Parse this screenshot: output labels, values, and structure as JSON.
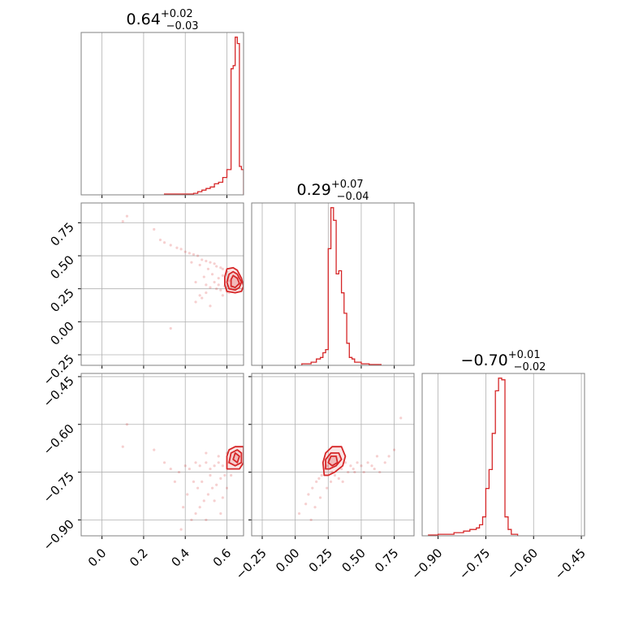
{
  "colors": {
    "line": "#d62728",
    "point": "#d62728",
    "grid": "#b0b0b0",
    "frame": "#808080"
  },
  "chart_data": {
    "type": "corner",
    "grid": true,
    "titles": [
      {
        "value": "0.64",
        "upper": "+0.02",
        "lower": "−0.03"
      },
      {
        "value": "0.29",
        "upper": "+0.07",
        "lower": "−0.04"
      },
      {
        "value": "−0.70",
        "upper": "+0.01",
        "lower": "−0.02"
      }
    ],
    "axes": [
      {
        "range": [
          -0.1,
          0.68
        ],
        "ticks": [
          0.0,
          0.2,
          0.4,
          0.6
        ],
        "tick_labels": [
          "0.0",
          "0.2",
          "0.4",
          "0.6"
        ]
      },
      {
        "range": [
          -0.33,
          0.9
        ],
        "ticks": [
          -0.25,
          0.0,
          0.25,
          0.5,
          0.75
        ],
        "tick_labels": [
          "−0.25",
          "0.00",
          "0.25",
          "0.50",
          "0.75"
        ]
      },
      {
        "range": [
          -0.95,
          -0.44
        ],
        "ticks": [
          -0.9,
          -0.75,
          -0.6,
          -0.45
        ],
        "tick_labels": [
          "−0.90",
          "−0.75",
          "−0.60",
          "−0.45"
        ]
      }
    ],
    "histograms": [
      {
        "edges": [
          0.3,
          0.4,
          0.44,
          0.46,
          0.48,
          0.5,
          0.52,
          0.54,
          0.56,
          0.58,
          0.6,
          0.62,
          0.63,
          0.64,
          0.65,
          0.66,
          0.67,
          0.68
        ],
        "counts": [
          0.005,
          0.005,
          0.01,
          0.02,
          0.03,
          0.04,
          0.05,
          0.07,
          0.08,
          0.11,
          0.16,
          0.8,
          0.82,
          1.0,
          0.96,
          0.18,
          0.16
        ]
      },
      {
        "edges": [
          0.05,
          0.12,
          0.16,
          0.19,
          0.21,
          0.23,
          0.25,
          0.27,
          0.29,
          0.31,
          0.33,
          0.35,
          0.37,
          0.39,
          0.41,
          0.43,
          0.45,
          0.5,
          0.56,
          0.65
        ],
        "counts": [
          0.01,
          0.02,
          0.04,
          0.05,
          0.08,
          0.1,
          0.74,
          1.0,
          0.92,
          0.58,
          0.6,
          0.46,
          0.33,
          0.14,
          0.05,
          0.04,
          0.02,
          0.01,
          0.005
        ]
      },
      {
        "edges": [
          -0.93,
          -0.9,
          -0.85,
          -0.82,
          -0.8,
          -0.78,
          -0.77,
          -0.76,
          -0.75,
          -0.74,
          -0.73,
          -0.72,
          -0.71,
          -0.7,
          -0.69,
          -0.68,
          -0.67,
          -0.65
        ],
        "counts": [
          0.005,
          0.01,
          0.02,
          0.03,
          0.04,
          0.05,
          0.07,
          0.12,
          0.3,
          0.42,
          0.65,
          0.92,
          1.0,
          0.99,
          0.12,
          0.04,
          0.01
        ]
      }
    ],
    "panels": [
      {
        "x_param": 0,
        "y_param": 1,
        "points": [
          [
            0.1,
            0.76
          ],
          [
            0.12,
            0.8
          ],
          [
            0.25,
            0.7
          ],
          [
            0.28,
            0.62
          ],
          [
            0.3,
            0.6
          ],
          [
            0.33,
            0.58
          ],
          [
            0.36,
            0.56
          ],
          [
            0.38,
            0.55
          ],
          [
            0.4,
            0.53
          ],
          [
            0.42,
            0.52
          ],
          [
            0.44,
            0.51
          ],
          [
            0.46,
            0.5
          ],
          [
            0.48,
            0.47
          ],
          [
            0.5,
            0.46
          ],
          [
            0.52,
            0.45
          ],
          [
            0.54,
            0.44
          ],
          [
            0.55,
            0.42
          ],
          [
            0.57,
            0.41
          ],
          [
            0.58,
            0.4
          ],
          [
            0.6,
            0.38
          ],
          [
            0.45,
            0.3
          ],
          [
            0.5,
            0.28
          ],
          [
            0.52,
            0.26
          ],
          [
            0.55,
            0.25
          ],
          [
            0.57,
            0.24
          ],
          [
            0.59,
            0.27
          ],
          [
            0.6,
            0.23
          ],
          [
            0.48,
            0.18
          ],
          [
            0.47,
            0.2
          ],
          [
            0.5,
            0.22
          ],
          [
            0.54,
            0.3
          ],
          [
            0.56,
            0.33
          ],
          [
            0.58,
            0.35
          ],
          [
            0.33,
            -0.05
          ],
          [
            0.56,
            0.28
          ],
          [
            0.61,
            0.31
          ],
          [
            0.62,
            0.26
          ],
          [
            0.65,
            0.33
          ],
          [
            0.66,
            0.29
          ],
          [
            0.53,
            0.36
          ],
          [
            0.51,
            0.4
          ],
          [
            0.43,
            0.45
          ],
          [
            0.47,
            0.43
          ],
          [
            0.49,
            0.34
          ],
          [
            0.45,
            0.15
          ],
          [
            0.52,
            0.12
          ],
          [
            0.58,
            0.2
          ],
          [
            0.61,
            0.22
          ]
        ],
        "contours": [
          [
            [
              0.6,
              0.23
            ],
            [
              0.64,
              0.22
            ],
            [
              0.67,
              0.23
            ],
            [
              0.68,
              0.27
            ],
            [
              0.67,
              0.33
            ],
            [
              0.65,
              0.39
            ],
            [
              0.63,
              0.41
            ],
            [
              0.6,
              0.4
            ],
            [
              0.59,
              0.34
            ],
            [
              0.59,
              0.28
            ]
          ],
          [
            [
              0.61,
              0.25
            ],
            [
              0.64,
              0.24
            ],
            [
              0.66,
              0.26
            ],
            [
              0.67,
              0.3
            ],
            [
              0.65,
              0.36
            ],
            [
              0.63,
              0.38
            ],
            [
              0.61,
              0.36
            ],
            [
              0.6,
              0.3
            ]
          ],
          [
            [
              0.62,
              0.27
            ],
            [
              0.64,
              0.26
            ],
            [
              0.66,
              0.29
            ],
            [
              0.65,
              0.33
            ],
            [
              0.63,
              0.35
            ],
            [
              0.62,
              0.32
            ]
          ]
        ]
      },
      {
        "x_param": 0,
        "y_param": 2,
        "points": [
          [
            0.1,
            -0.67
          ],
          [
            0.12,
            -0.6
          ],
          [
            0.25,
            -0.68
          ],
          [
            0.3,
            -0.72
          ],
          [
            0.33,
            -0.74
          ],
          [
            0.37,
            -0.75
          ],
          [
            0.4,
            -0.73
          ],
          [
            0.42,
            -0.74
          ],
          [
            0.45,
            -0.72
          ],
          [
            0.47,
            -0.73
          ],
          [
            0.5,
            -0.72
          ],
          [
            0.52,
            -0.74
          ],
          [
            0.54,
            -0.73
          ],
          [
            0.56,
            -0.72
          ],
          [
            0.58,
            -0.73
          ],
          [
            0.45,
            -0.88
          ],
          [
            0.47,
            -0.86
          ],
          [
            0.49,
            -0.84
          ],
          [
            0.51,
            -0.82
          ],
          [
            0.53,
            -0.8
          ],
          [
            0.55,
            -0.79
          ],
          [
            0.57,
            -0.77
          ],
          [
            0.59,
            -0.76
          ],
          [
            0.43,
            -0.9
          ],
          [
            0.38,
            -0.93
          ],
          [
            0.48,
            -0.78
          ],
          [
            0.52,
            -0.76
          ],
          [
            0.56,
            -0.7
          ],
          [
            0.6,
            -0.69
          ],
          [
            0.5,
            -0.69
          ],
          [
            0.44,
            -0.78
          ],
          [
            0.41,
            -0.82
          ],
          [
            0.46,
            -0.8
          ],
          [
            0.54,
            -0.84
          ],
          [
            0.6,
            -0.8
          ],
          [
            0.58,
            -0.83
          ],
          [
            0.62,
            -0.76
          ],
          [
            0.39,
            -0.86
          ],
          [
            0.35,
            -0.78
          ],
          [
            0.5,
            -0.9
          ],
          [
            0.57,
            -0.88
          ],
          [
            0.61,
            -0.72
          ]
        ],
        "contours": [
          [
            [
              0.6,
              -0.74
            ],
            [
              0.6,
              -0.7
            ],
            [
              0.61,
              -0.68
            ],
            [
              0.64,
              -0.67
            ],
            [
              0.68,
              -0.67
            ],
            [
              0.68,
              -0.72
            ],
            [
              0.66,
              -0.74
            ],
            [
              0.63,
              -0.74
            ]
          ],
          [
            [
              0.61,
              -0.72
            ],
            [
              0.62,
              -0.69
            ],
            [
              0.65,
              -0.68
            ],
            [
              0.67,
              -0.69
            ],
            [
              0.67,
              -0.72
            ],
            [
              0.64,
              -0.73
            ]
          ],
          [
            [
              0.63,
              -0.71
            ],
            [
              0.64,
              -0.69
            ],
            [
              0.66,
              -0.7
            ],
            [
              0.65,
              -0.72
            ]
          ]
        ]
      },
      {
        "x_param": 1,
        "y_param": 2,
        "points": [
          [
            0.03,
            -0.88
          ],
          [
            0.08,
            -0.85
          ],
          [
            0.1,
            -0.82
          ],
          [
            0.13,
            -0.8
          ],
          [
            0.16,
            -0.78
          ],
          [
            0.18,
            -0.77
          ],
          [
            0.2,
            -0.76
          ],
          [
            0.22,
            -0.74
          ],
          [
            0.24,
            -0.73
          ],
          [
            0.35,
            -0.74
          ],
          [
            0.4,
            -0.75
          ],
          [
            0.42,
            -0.73
          ],
          [
            0.44,
            -0.74
          ],
          [
            0.47,
            -0.72
          ],
          [
            0.5,
            -0.73
          ],
          [
            0.55,
            -0.72
          ],
          [
            0.6,
            -0.74
          ],
          [
            0.62,
            -0.7
          ],
          [
            0.68,
            -0.72
          ],
          [
            0.8,
            -0.58
          ],
          [
            0.19,
            -0.83
          ],
          [
            0.15,
            -0.86
          ],
          [
            0.24,
            -0.8
          ],
          [
            0.27,
            -0.78
          ],
          [
            0.3,
            -0.76
          ],
          [
            0.33,
            -0.77
          ],
          [
            0.38,
            -0.72
          ],
          [
            0.45,
            -0.75
          ],
          [
            0.52,
            -0.75
          ],
          [
            0.58,
            -0.73
          ],
          [
            0.64,
            -0.75
          ],
          [
            0.71,
            -0.7
          ],
          [
            0.75,
            -0.68
          ],
          [
            0.12,
            -0.9
          ],
          [
            0.28,
            -0.75
          ],
          [
            0.36,
            -0.78
          ]
        ],
        "contours": [
          [
            [
              0.22,
              -0.76
            ],
            [
              0.21,
              -0.72
            ],
            [
              0.23,
              -0.69
            ],
            [
              0.28,
              -0.67
            ],
            [
              0.35,
              -0.67
            ],
            [
              0.38,
              -0.7
            ],
            [
              0.36,
              -0.73
            ],
            [
              0.3,
              -0.75
            ],
            [
              0.25,
              -0.76
            ]
          ],
          [
            [
              0.23,
              -0.74
            ],
            [
              0.23,
              -0.71
            ],
            [
              0.27,
              -0.69
            ],
            [
              0.33,
              -0.69
            ],
            [
              0.35,
              -0.71
            ],
            [
              0.31,
              -0.73
            ],
            [
              0.26,
              -0.74
            ]
          ],
          [
            [
              0.25,
              -0.72
            ],
            [
              0.27,
              -0.7
            ],
            [
              0.31,
              -0.7
            ],
            [
              0.32,
              -0.72
            ],
            [
              0.28,
              -0.73
            ]
          ]
        ]
      }
    ]
  }
}
